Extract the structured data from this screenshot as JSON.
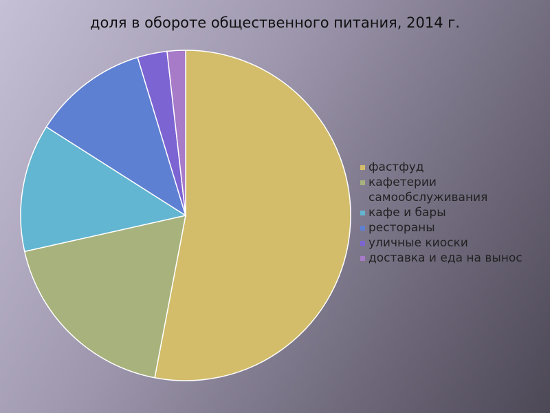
{
  "chart_data": {
    "type": "pie",
    "title": "доля в обороте общественного питания, 2014 г.",
    "categories": [
      "фастфуд",
      "кафетерии самообслуживания",
      "кафе и бары",
      "рестораны",
      "уличные киоски",
      "доставка и еда на вынос"
    ],
    "values": [
      53,
      18.5,
      12.5,
      11.3,
      2.9,
      1.8
    ],
    "colors": [
      "#d3bd6a",
      "#a8b27c",
      "#62b6d2",
      "#5e80d2",
      "#7c64d2",
      "#a77bc8"
    ]
  }
}
